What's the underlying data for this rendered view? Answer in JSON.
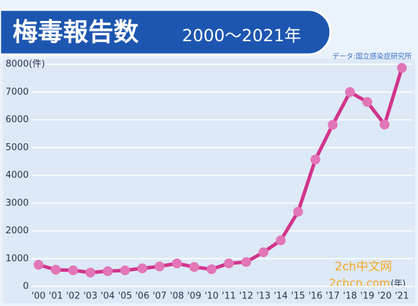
{
  "chart_data": {
    "type": "line",
    "title": "梅毒報告数",
    "subtitle": "2000～2021年",
    "source": "データ:国立感染症研究所",
    "x_label": "(年)",
    "watermark": {
      "line1": "2ch中文网",
      "line2": "2chcn.com"
    },
    "categories": [
      "'00",
      "'01",
      "'02",
      "'03",
      "'04",
      "'05",
      "'06",
      "'07",
      "'08",
      "'09",
      "'10",
      "'11",
      "'12",
      "'13",
      "'14",
      "'15",
      "'16",
      "'17",
      "'18",
      "'19",
      "'20",
      "'21"
    ],
    "series": [
      {
        "color": "#d2348c",
        "marker_color": "#e276b8",
        "values": [
          780,
          600,
          580,
          500,
          550,
          580,
          650,
          720,
          830,
          700,
          620,
          830,
          880,
          1230,
          1660,
          2690,
          4570,
          5820,
          7000,
          6640,
          5830,
          7870
        ]
      }
    ],
    "ylim": [
      0,
      8000
    ],
    "yticks": [
      0,
      1000,
      2000,
      3000,
      4000,
      5000,
      6000,
      7000,
      {
        "value": 8000,
        "label": "8000(件)"
      }
    ],
    "grid": true
  }
}
